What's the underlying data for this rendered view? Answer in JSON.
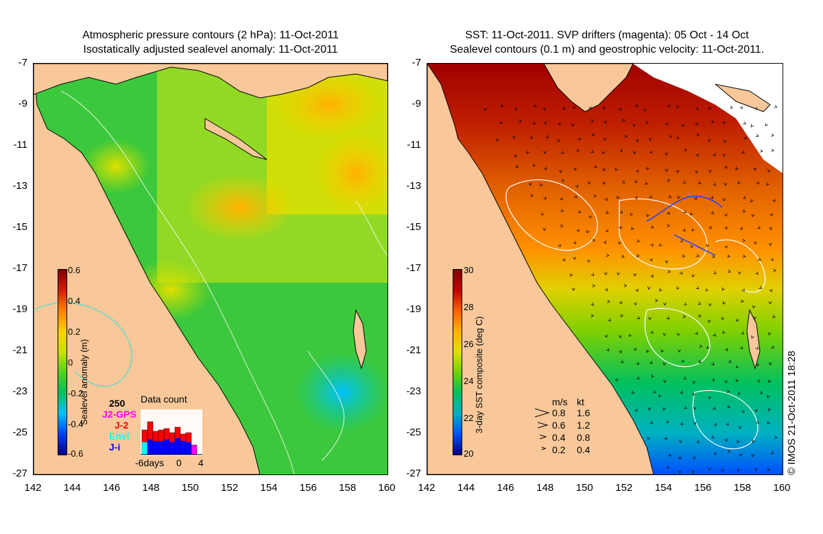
{
  "left_panel": {
    "title_line1": "Atmospheric pressure contours (2 hPa): 11-Oct-2011",
    "title_line2": "Isostatically adjusted sealevel anomaly: 11-Oct-2011",
    "colorbar": {
      "label": "Sealevel anomaly (m)",
      "ticks": [
        "0.6",
        "0.4",
        "0.2",
        "0",
        "-0.2",
        "-0.4",
        "-0.6"
      ]
    },
    "data_count": {
      "title": "Data count",
      "max": "250",
      "missions": [
        {
          "name": "J2-GPS",
          "color": "#ff00ff"
        },
        {
          "name": "J-2",
          "color": "#ff0000"
        },
        {
          "name": "Envi",
          "color": "#00ffff"
        },
        {
          "name": "J-i",
          "color": "#0000ff"
        }
      ],
      "x_ticks": [
        "-6days",
        "0",
        "4"
      ]
    }
  },
  "right_panel": {
    "title_line1": "SST: 11-Oct-2011. SVP drifters (magenta): 05 Oct - 14 Oct",
    "title_line2": "Sealevel contours (0.1 m) and geostrophic velocity: 11-Oct-2011.",
    "colorbar": {
      "label": "3-day SST composite (deg C)",
      "ticks": [
        "30",
        "28",
        "26",
        "24",
        "22",
        "20"
      ]
    },
    "velocity_legend": {
      "header_ms": "m/s",
      "header_kt": "kt",
      "rows": [
        {
          "ms": "0.8",
          "kt": "1.6"
        },
        {
          "ms": "0.6",
          "kt": "1.2"
        },
        {
          "ms": "0.4",
          "kt": "0.8"
        },
        {
          "ms": "0.2",
          "kt": "0.4"
        }
      ]
    }
  },
  "axes": {
    "y_ticks": [
      "-7",
      "-9",
      "-11",
      "-13",
      "-15",
      "-17",
      "-19",
      "-21",
      "-23",
      "-25",
      "-27"
    ],
    "x_ticks": [
      "142",
      "144",
      "146",
      "148",
      "150",
      "152",
      "154",
      "156",
      "158",
      "160"
    ]
  },
  "credit": "© IMOS 21-Oct-2011 18:28",
  "colors": {
    "land": "#f8c89a",
    "sla_ramp": [
      "#00007f",
      "#0040ff",
      "#00c0ff",
      "#00c060",
      "#50d020",
      "#c8e000",
      "#ffd000",
      "#ff8000",
      "#d02000",
      "#7f0000"
    ],
    "sst_ramp": [
      "#00007f",
      "#0050ff",
      "#00b0c0",
      "#00c060",
      "#70d000",
      "#e0e000",
      "#ffb000",
      "#ff6000",
      "#c00000",
      "#7f0000"
    ]
  }
}
